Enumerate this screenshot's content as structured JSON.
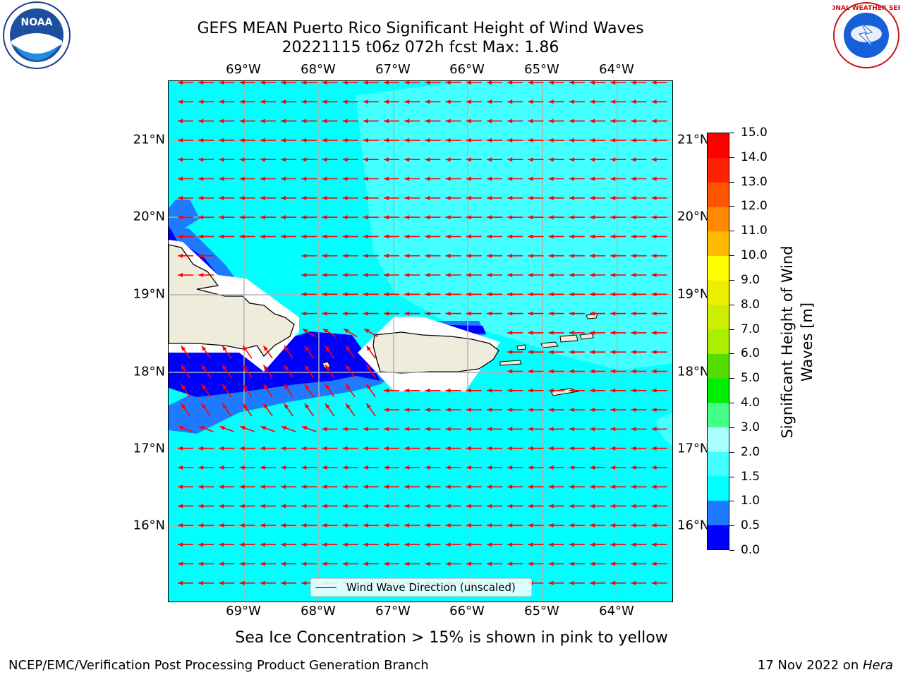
{
  "title": {
    "line1": "GEFS MEAN Puerto Rico Significant Height of Wind Waves",
    "line2": "20221115 t06z 072h fcst   Max: 1.86"
  },
  "axes": {
    "lon_labels": [
      "69°W",
      "68°W",
      "67°W",
      "66°W",
      "65°W",
      "64°W"
    ],
    "lat_labels": [
      "21°N",
      "20°N",
      "19°N",
      "18°N",
      "17°N",
      "16°N"
    ],
    "lon_range": [
      -70.0,
      -63.25
    ],
    "lat_range": [
      15.0,
      21.75
    ]
  },
  "legend": {
    "label": "Wind Wave Direction (unscaled)",
    "arrow_color": "#ff0000"
  },
  "colorbar": {
    "label": "Significant Height of Wind Waves [m]",
    "ticks": [
      "0.0",
      "0.5",
      "1.0",
      "1.5",
      "2.0",
      "3.0",
      "4.0",
      "5.0",
      "6.0",
      "7.0",
      "8.0",
      "9.0",
      "10.0",
      "11.0",
      "12.0",
      "13.0",
      "14.0",
      "15.0"
    ],
    "colors": [
      "#0000ff",
      "#1e7bff",
      "#00ffff",
      "#44ffff",
      "#aaffff",
      "#44ff88",
      "#00ee00",
      "#55dd00",
      "#aaee00",
      "#ccee00",
      "#eeee00",
      "#ffff00",
      "#ffbb00",
      "#ff8800",
      "#ff5500",
      "#ff2200",
      "#ff0000"
    ]
  },
  "map_colors": {
    "ocean_base": "#00ffff",
    "ocean_light": "#44ffff",
    "mid": "#1e7bff",
    "deep": "#0000ff",
    "land": "#efecdc",
    "coast": "#000000",
    "grid": "#b0b0b0"
  },
  "sea_ice_note": "Sea Ice Concentration > 15% is shown in pink to yellow",
  "footer": {
    "left": "NCEP/EMC/Verification Post Processing Product Generation Branch",
    "date": "17 Nov 2022 on ",
    "host": "Hera"
  },
  "logos": {
    "noaa_text": "NOAA",
    "nws_text": "NATIONAL WEATHER SERVICE"
  }
}
